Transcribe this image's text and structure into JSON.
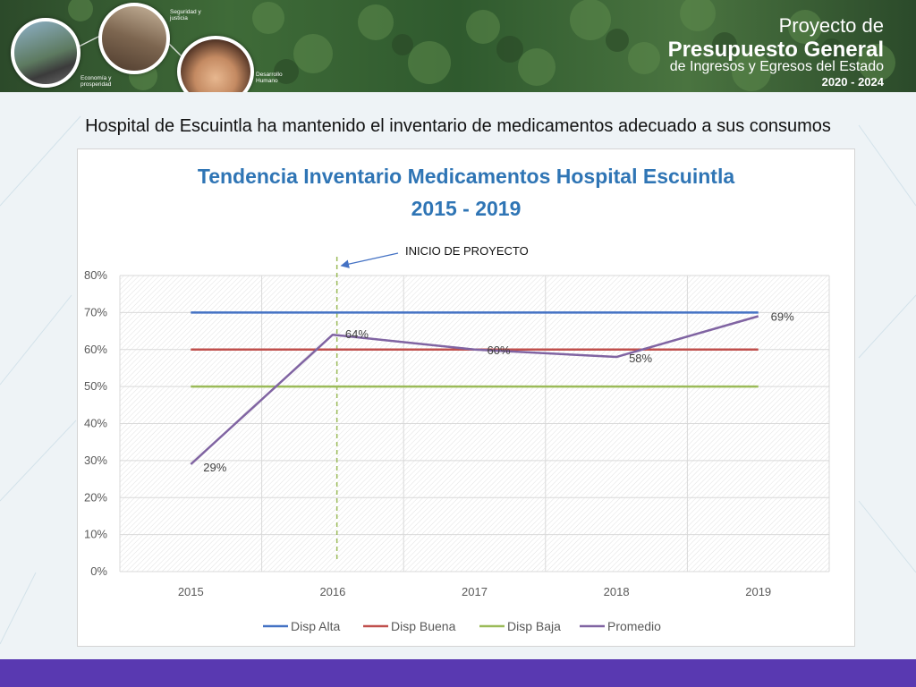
{
  "banner": {
    "labels": {
      "seguridad": "Seguridad y justicia",
      "economia": "Economía y prosperidad",
      "desarrollo": "Desarrollo Humano"
    },
    "logo": {
      "line1": "Proyecto de",
      "line2": "Presupuesto General",
      "line3": "de Ingresos y Egresos del Estado",
      "line4": "2020 - 2024"
    }
  },
  "headline": "Hospital de Escuintla ha mantenido el inventario de medicamentos adecuado a sus consumos",
  "colors": {
    "title": "#2f75b5",
    "alta": "#4472c4",
    "buena": "#c0504d",
    "baja": "#9bbb59",
    "promedio": "#8064a2",
    "marker": "#9bbb59",
    "bottom_bar": "#5939b1"
  },
  "chart_data": {
    "type": "line",
    "title_line1": "Tendencia Inventario Medicamentos Hospital Escuintla",
    "title_line2": "2015 - 2019",
    "x": [
      "2015",
      "2016",
      "2017",
      "2018",
      "2019"
    ],
    "ylim": [
      0,
      80
    ],
    "yticks": [
      "0%",
      "10%",
      "20%",
      "30%",
      "40%",
      "50%",
      "60%",
      "70%",
      "80%"
    ],
    "grid": true,
    "legend_position": "bottom",
    "series": [
      {
        "name": "Disp Alta",
        "values": [
          70,
          70,
          70,
          70,
          70
        ]
      },
      {
        "name": "Disp Buena",
        "values": [
          60,
          60,
          60,
          60,
          60
        ]
      },
      {
        "name": "Disp Baja",
        "values": [
          50,
          50,
          50,
          50,
          50
        ]
      },
      {
        "name": "Promedio",
        "values": [
          29,
          64,
          60,
          58,
          69
        ],
        "labels": [
          "29%",
          "64%",
          "60%",
          "58%",
          "69%"
        ]
      }
    ],
    "annotation": {
      "text": "INICIO DE PROYECTO",
      "x_value": 2016.03
    }
  }
}
